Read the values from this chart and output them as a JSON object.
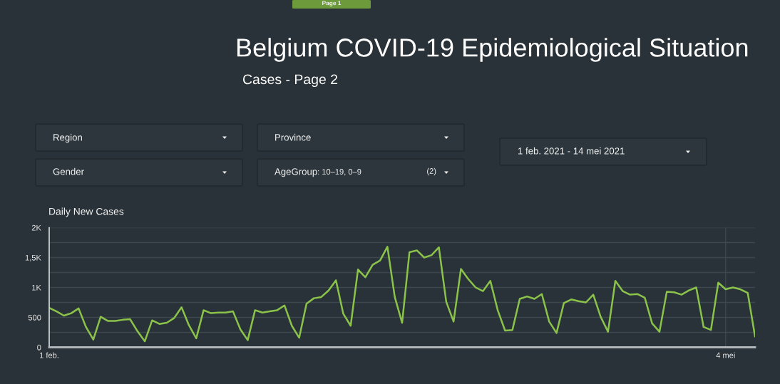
{
  "chart_data": {
    "type": "line",
    "title": "Belgium COVID-19 Epidemiological Situation",
    "subtitle": "Cases - Page 2",
    "annotations": [
      "Page 1",
      "Region",
      "Province",
      "Gender",
      "AgeGroup",
      ": 10–19, 0–9",
      "(2)",
      "1 feb. 2021 - 14 mei 2021",
      "Daily New Cases"
    ],
    "x": [
      "2021-02-01",
      "2021-02-02",
      "2021-02-03",
      "2021-02-04",
      "2021-02-05",
      "2021-02-06",
      "2021-02-07",
      "2021-02-08",
      "2021-02-09",
      "2021-02-10",
      "2021-02-11",
      "2021-02-12",
      "2021-02-13",
      "2021-02-14",
      "2021-02-15",
      "2021-02-16",
      "2021-02-17",
      "2021-02-18",
      "2021-02-19",
      "2021-02-20",
      "2021-02-21",
      "2021-02-22",
      "2021-02-23",
      "2021-02-24",
      "2021-02-25",
      "2021-02-26",
      "2021-02-27",
      "2021-02-28",
      "2021-03-01",
      "2021-03-02",
      "2021-03-03",
      "2021-03-04",
      "2021-03-05",
      "2021-03-06",
      "2021-03-07",
      "2021-03-08",
      "2021-03-09",
      "2021-03-10",
      "2021-03-11",
      "2021-03-12",
      "2021-03-13",
      "2021-03-14",
      "2021-03-15",
      "2021-03-16",
      "2021-03-17",
      "2021-03-18",
      "2021-03-19",
      "2021-03-20",
      "2021-03-21",
      "2021-03-22",
      "2021-03-23",
      "2021-03-24",
      "2021-03-25",
      "2021-03-26",
      "2021-03-27",
      "2021-03-28",
      "2021-03-29",
      "2021-03-30",
      "2021-03-31",
      "2021-04-01",
      "2021-04-02",
      "2021-04-03",
      "2021-04-04",
      "2021-04-05",
      "2021-04-06",
      "2021-04-07",
      "2021-04-08",
      "2021-04-09",
      "2021-04-10",
      "2021-04-11",
      "2021-04-12",
      "2021-04-13",
      "2021-04-14",
      "2021-04-15",
      "2021-04-16",
      "2021-04-17",
      "2021-04-18",
      "2021-04-19",
      "2021-04-20",
      "2021-04-21",
      "2021-04-22",
      "2021-04-23",
      "2021-04-24",
      "2021-04-25",
      "2021-04-26",
      "2021-04-27",
      "2021-04-28",
      "2021-04-29",
      "2021-04-30",
      "2021-05-01",
      "2021-05-02",
      "2021-05-03",
      "2021-05-04",
      "2021-05-05",
      "2021-05-06",
      "2021-05-07",
      "2021-05-08"
    ],
    "series": [
      {
        "color": "#8bc34a",
        "values": [
          660,
          600,
          530,
          570,
          650,
          340,
          130,
          510,
          440,
          440,
          460,
          470,
          270,
          100,
          450,
          390,
          410,
          490,
          670,
          370,
          150,
          620,
          570,
          580,
          580,
          600,
          300,
          120,
          620,
          580,
          600,
          620,
          700,
          360,
          160,
          730,
          820,
          840,
          950,
          1120,
          560,
          360,
          1300,
          1170,
          1380,
          1450,
          1680,
          840,
          410,
          1590,
          1620,
          1500,
          1540,
          1670,
          760,
          430,
          1310,
          1140,
          1000,
          940,
          1110,
          620,
          280,
          290,
          810,
          850,
          810,
          890,
          430,
          240,
          740,
          800,
          770,
          750,
          880,
          510,
          260,
          1110,
          940,
          880,
          890,
          830,
          400,
          260,
          930,
          920,
          880,
          950,
          1000,
          340,
          290,
          1080,
          970,
          1000,
          970,
          910,
          180
        ]
      }
    ],
    "xlim": [
      "2021-02-01",
      "2021-05-08"
    ],
    "xticks": [
      {
        "value": "2021-02-01",
        "label": "1 feb."
      },
      {
        "value": "2021-05-04",
        "label": "4 mei"
      }
    ],
    "ylim": [
      0,
      2000
    ],
    "yticks": [
      0,
      {
        "value": 250,
        "label": null
      },
      500,
      {
        "value": 750,
        "label": null
      },
      {
        "value": 1000,
        "label": "1K"
      },
      {
        "value": 1250,
        "label": null
      },
      {
        "value": 1500,
        "label": "1,5K"
      },
      {
        "value": 1750,
        "label": null
      },
      {
        "value": 2000,
        "label": "2K"
      }
    ],
    "grid": true
  }
}
